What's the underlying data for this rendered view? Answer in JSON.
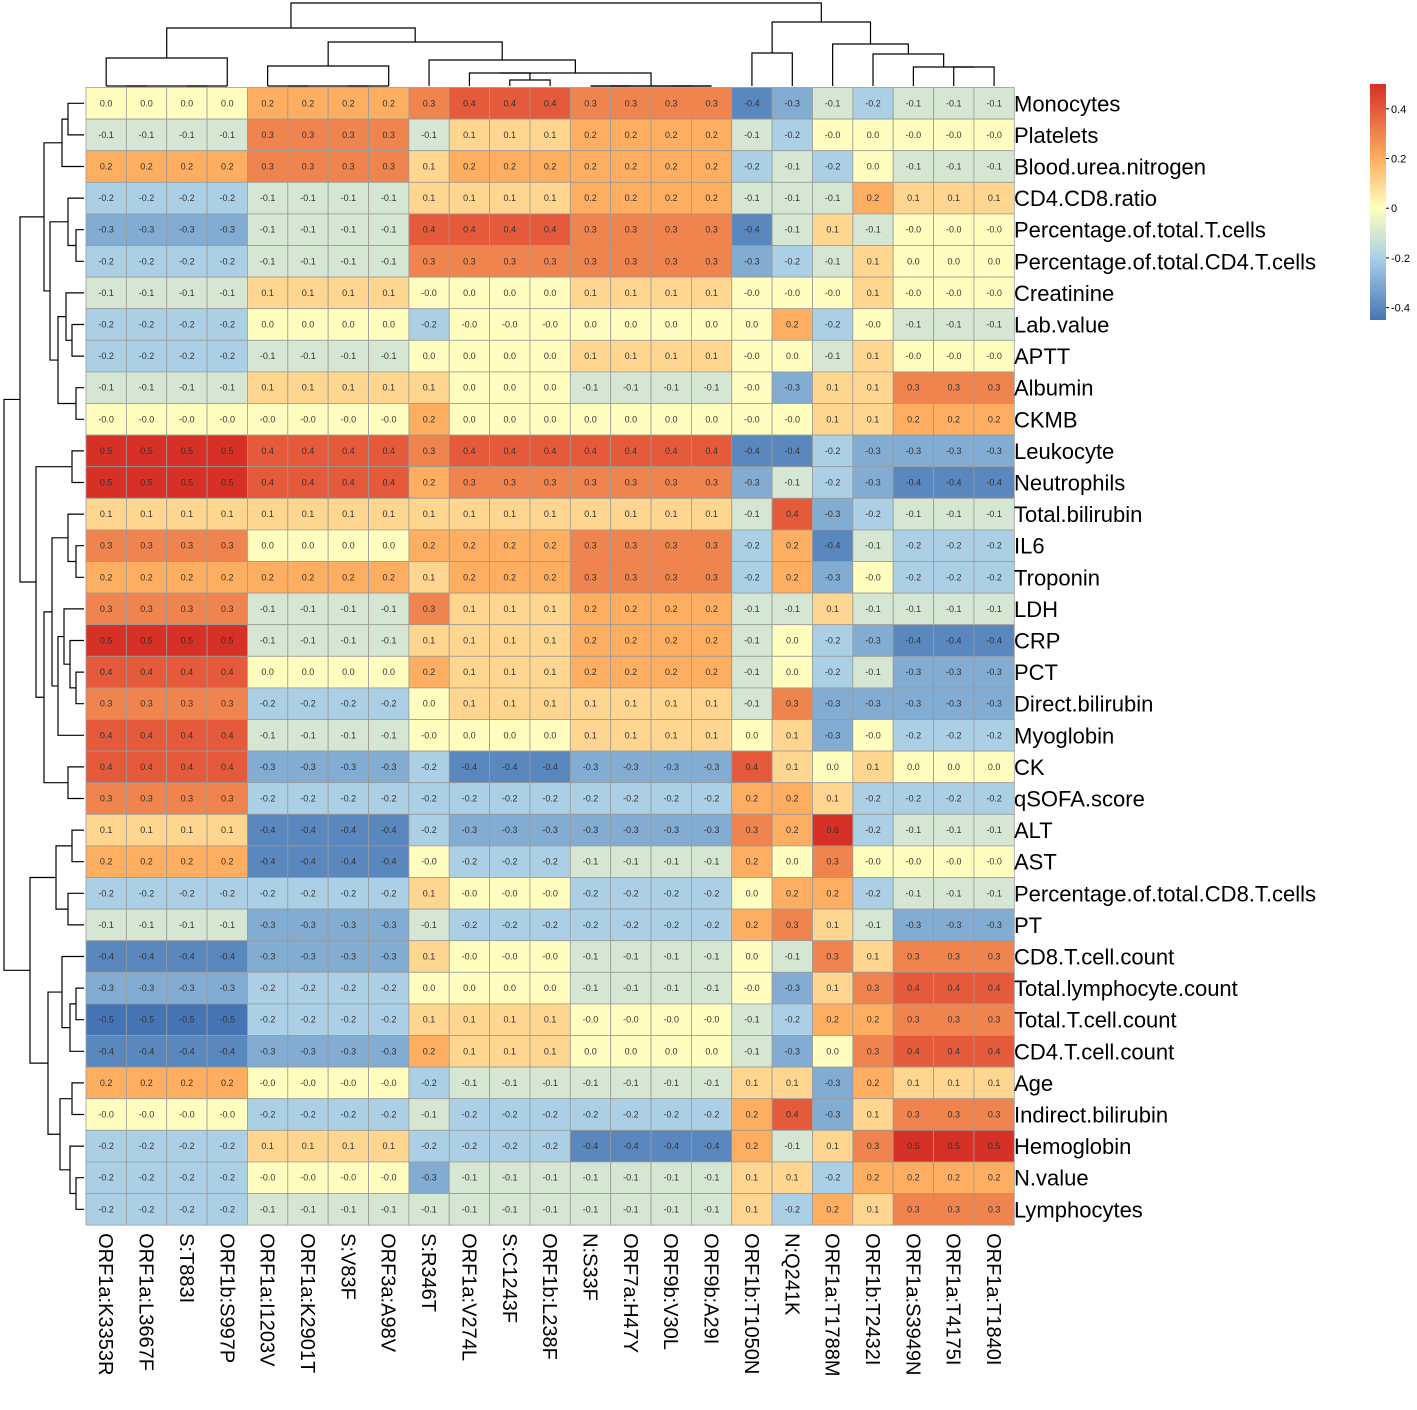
{
  "chart_data": {
    "type": "heatmap",
    "title": "",
    "columns": [
      "ORF1a:K3353R",
      "ORF1a:L3667F",
      "S:T883I",
      "ORF1b:S997P",
      "ORF1a:I1203V",
      "ORF1a:K2901T",
      "S:V83F",
      "ORF3a:A98V",
      "S:R346T",
      "ORF1a:V274L",
      "S:C1243F",
      "ORF1b:L238F",
      "N:S33F",
      "ORF7a:H47Y",
      "ORF9b:V30L",
      "ORF9b:A29I",
      "ORF1b:T1050N",
      "N:Q241K",
      "ORF1a:T1788M",
      "ORF1b:T2432I",
      "ORF1a:S3949N",
      "ORF1a:T4175I",
      "ORF1a:T1840I"
    ],
    "rows": [
      "Monocytes",
      "Platelets",
      "Blood.urea.nitrogen",
      "CD4.CD8.ratio",
      "Percentage.of.total.T.cells",
      "Percentage.of.total.CD4.T.cells",
      "Creatinine",
      "Lab.value",
      "APTT",
      "Albumin",
      "CKMB",
      "Leukocyte",
      "Neutrophils",
      "Total.bilirubin",
      "IL6",
      "Troponin",
      "LDH",
      "CRP",
      "PCT",
      "Direct.bilirubin",
      "Myoglobin",
      "CK",
      "qSOFA.score",
      "ALT",
      "AST",
      "Percentage.of.total.CD8.T.cells",
      "PT",
      "CD8.T.cell.count",
      "Total.lymphocyte.count",
      "Total.T.cell.count",
      "CD4.T.cell.count",
      "Age",
      "Indirect.bilirubin",
      "Hemoglobin",
      "N.value",
      "Lymphocytes"
    ],
    "values": [
      [
        "0.0",
        "0.0",
        "0.0",
        "0.0",
        "0.2",
        "0.2",
        "0.2",
        "0.2",
        "0.3",
        "0.4",
        "0.4",
        "0.4",
        "0.3",
        "0.3",
        "0.3",
        "0.3",
        "-0.4",
        "-0.3",
        "-0.1",
        "-0.2",
        "-0.1",
        "-0.1",
        "-0.1"
      ],
      [
        "-0.1",
        "-0.1",
        "-0.1",
        "-0.1",
        "0.3",
        "0.3",
        "0.3",
        "0.3",
        "-0.1",
        "0.1",
        "0.1",
        "0.1",
        "0.2",
        "0.2",
        "0.2",
        "0.2",
        "-0.1",
        "-0.2",
        "-0.0",
        "0.0",
        "-0.0",
        "-0.0",
        "-0.0"
      ],
      [
        "0.2",
        "0.2",
        "0.2",
        "0.2",
        "0.3",
        "0.3",
        "0.3",
        "0.3",
        "0.1",
        "0.2",
        "0.2",
        "0.2",
        "0.2",
        "0.2",
        "0.2",
        "0.2",
        "-0.2",
        "-0.1",
        "-0.2",
        "0.0",
        "-0.1",
        "-0.1",
        "-0.1"
      ],
      [
        "-0.2",
        "-0.2",
        "-0.2",
        "-0.2",
        "-0.1",
        "-0.1",
        "-0.1",
        "-0.1",
        "0.1",
        "0.1",
        "0.1",
        "0.1",
        "0.2",
        "0.2",
        "0.2",
        "0.2",
        "-0.1",
        "-0.1",
        "-0.1",
        "0.2",
        "0.1",
        "0.1",
        "0.1"
      ],
      [
        "-0.3",
        "-0.3",
        "-0.3",
        "-0.3",
        "-0.1",
        "-0.1",
        "-0.1",
        "-0.1",
        "0.4",
        "0.4",
        "0.4",
        "0.4",
        "0.3",
        "0.3",
        "0.3",
        "0.3",
        "-0.4",
        "-0.1",
        "0.1",
        "-0.1",
        "-0.0",
        "-0.0",
        "-0.0"
      ],
      [
        "-0.2",
        "-0.2",
        "-0.2",
        "-0.2",
        "-0.1",
        "-0.1",
        "-0.1",
        "-0.1",
        "0.3",
        "0.3",
        "0.3",
        "0.3",
        "0.3",
        "0.3",
        "0.3",
        "0.3",
        "-0.3",
        "-0.2",
        "-0.1",
        "0.1",
        "0.0",
        "0.0",
        "0.0"
      ],
      [
        "-0.1",
        "-0.1",
        "-0.1",
        "-0.1",
        "0.1",
        "0.1",
        "0.1",
        "0.1",
        "-0.0",
        "0.0",
        "0.0",
        "0.0",
        "0.1",
        "0.1",
        "0.1",
        "0.1",
        "-0.0",
        "-0.0",
        "-0.0",
        "0.1",
        "-0.0",
        "-0.0",
        "-0.0"
      ],
      [
        "-0.2",
        "-0.2",
        "-0.2",
        "-0.2",
        "0.0",
        "0.0",
        "0.0",
        "0.0",
        "-0.2",
        "-0.0",
        "-0.0",
        "-0.0",
        "0.0",
        "0.0",
        "0.0",
        "0.0",
        "0.0",
        "0.2",
        "-0.2",
        "-0.0",
        "-0.1",
        "-0.1",
        "-0.1"
      ],
      [
        "-0.2",
        "-0.2",
        "-0.2",
        "-0.2",
        "-0.1",
        "-0.1",
        "-0.1",
        "-0.1",
        "0.0",
        "0.0",
        "0.0",
        "0.0",
        "0.1",
        "0.1",
        "0.1",
        "0.1",
        "-0.0",
        "0.0",
        "-0.1",
        "0.1",
        "-0.0",
        "-0.0",
        "-0.0"
      ],
      [
        "-0.1",
        "-0.1",
        "-0.1",
        "-0.1",
        "0.1",
        "0.1",
        "0.1",
        "0.1",
        "0.1",
        "0.0",
        "0.0",
        "0.0",
        "-0.1",
        "-0.1",
        "-0.1",
        "-0.1",
        "-0.0",
        "-0.3",
        "0.1",
        "0.1",
        "0.3",
        "0.3",
        "0.3"
      ],
      [
        "-0.0",
        "-0.0",
        "-0.0",
        "-0.0",
        "-0.0",
        "-0.0",
        "-0.0",
        "-0.0",
        "0.2",
        "0.0",
        "0.0",
        "0.0",
        "0.0",
        "0.0",
        "0.0",
        "0.0",
        "-0.0",
        "-0.0",
        "0.1",
        "0.1",
        "0.2",
        "0.2",
        "0.2"
      ],
      [
        "0.5",
        "0.5",
        "0.5",
        "0.5",
        "0.4",
        "0.4",
        "0.4",
        "0.4",
        "0.3",
        "0.4",
        "0.4",
        "0.4",
        "0.4",
        "0.4",
        "0.4",
        "0.4",
        "-0.4",
        "-0.4",
        "-0.2",
        "-0.3",
        "-0.3",
        "-0.3",
        "-0.3"
      ],
      [
        "0.5",
        "0.5",
        "0.5",
        "0.5",
        "0.4",
        "0.4",
        "0.4",
        "0.4",
        "0.2",
        "0.3",
        "0.3",
        "0.3",
        "0.3",
        "0.3",
        "0.3",
        "0.3",
        "-0.3",
        "-0.1",
        "-0.2",
        "-0.3",
        "-0.4",
        "-0.4",
        "-0.4"
      ],
      [
        "0.1",
        "0.1",
        "0.1",
        "0.1",
        "0.1",
        "0.1",
        "0.1",
        "0.1",
        "0.1",
        "0.1",
        "0.1",
        "0.1",
        "0.1",
        "0.1",
        "0.1",
        "0.1",
        "-0.1",
        "0.4",
        "-0.3",
        "-0.2",
        "-0.1",
        "-0.1",
        "-0.1"
      ],
      [
        "0.3",
        "0.3",
        "0.3",
        "0.3",
        "0.0",
        "0.0",
        "0.0",
        "0.0",
        "0.2",
        "0.2",
        "0.2",
        "0.2",
        "0.3",
        "0.3",
        "0.3",
        "0.3",
        "-0.2",
        "0.2",
        "-0.4",
        "-0.1",
        "-0.2",
        "-0.2",
        "-0.2"
      ],
      [
        "0.2",
        "0.2",
        "0.2",
        "0.2",
        "0.2",
        "0.2",
        "0.2",
        "0.2",
        "0.1",
        "0.2",
        "0.2",
        "0.2",
        "0.3",
        "0.3",
        "0.3",
        "0.3",
        "-0.2",
        "0.2",
        "-0.3",
        "-0.0",
        "-0.2",
        "-0.2",
        "-0.2"
      ],
      [
        "0.3",
        "0.3",
        "0.3",
        "0.3",
        "-0.1",
        "-0.1",
        "-0.1",
        "-0.1",
        "0.3",
        "0.1",
        "0.1",
        "0.1",
        "0.2",
        "0.2",
        "0.2",
        "0.2",
        "-0.1",
        "-0.1",
        "0.1",
        "-0.1",
        "-0.1",
        "-0.1",
        "-0.1"
      ],
      [
        "0.5",
        "0.5",
        "0.5",
        "0.5",
        "-0.1",
        "-0.1",
        "-0.1",
        "-0.1",
        "0.1",
        "0.1",
        "0.1",
        "0.1",
        "0.2",
        "0.2",
        "0.2",
        "0.2",
        "-0.1",
        "0.0",
        "-0.2",
        "-0.3",
        "-0.4",
        "-0.4",
        "-0.4"
      ],
      [
        "0.4",
        "0.4",
        "0.4",
        "0.4",
        "0.0",
        "0.0",
        "0.0",
        "0.0",
        "0.2",
        "0.1",
        "0.1",
        "0.1",
        "0.2",
        "0.2",
        "0.2",
        "0.2",
        "-0.1",
        "0.0",
        "-0.2",
        "-0.1",
        "-0.3",
        "-0.3",
        "-0.3"
      ],
      [
        "0.3",
        "0.3",
        "0.3",
        "0.3",
        "-0.2",
        "-0.2",
        "-0.2",
        "-0.2",
        "0.0",
        "0.1",
        "0.1",
        "0.1",
        "0.1",
        "0.1",
        "0.1",
        "0.1",
        "-0.1",
        "0.3",
        "-0.3",
        "-0.3",
        "-0.3",
        "-0.3",
        "-0.3"
      ],
      [
        "0.4",
        "0.4",
        "0.4",
        "0.4",
        "-0.1",
        "-0.1",
        "-0.1",
        "-0.1",
        "-0.0",
        "0.0",
        "0.0",
        "0.0",
        "0.1",
        "0.1",
        "0.1",
        "0.1",
        "0.0",
        "0.1",
        "-0.3",
        "-0.0",
        "-0.2",
        "-0.2",
        "-0.2"
      ],
      [
        "0.4",
        "0.4",
        "0.4",
        "0.4",
        "-0.3",
        "-0.3",
        "-0.3",
        "-0.3",
        "-0.2",
        "-0.4",
        "-0.4",
        "-0.4",
        "-0.3",
        "-0.3",
        "-0.3",
        "-0.3",
        "0.4",
        "0.1",
        "0.0",
        "0.1",
        "0.0",
        "0.0",
        "0.0"
      ],
      [
        "0.3",
        "0.3",
        "0.3",
        "0.3",
        "-0.2",
        "-0.2",
        "-0.2",
        "-0.2",
        "-0.2",
        "-0.2",
        "-0.2",
        "-0.2",
        "-0.2",
        "-0.2",
        "-0.2",
        "-0.2",
        "0.2",
        "0.2",
        "0.1",
        "-0.2",
        "-0.2",
        "-0.2",
        "-0.2"
      ],
      [
        "0.1",
        "0.1",
        "0.1",
        "0.1",
        "-0.4",
        "-0.4",
        "-0.4",
        "-0.4",
        "-0.2",
        "-0.3",
        "-0.3",
        "-0.3",
        "-0.3",
        "-0.3",
        "-0.3",
        "-0.3",
        "0.3",
        "0.2",
        "0.6",
        "-0.2",
        "-0.1",
        "-0.1",
        "-0.1"
      ],
      [
        "0.2",
        "0.2",
        "0.2",
        "0.2",
        "-0.4",
        "-0.4",
        "-0.4",
        "-0.4",
        "-0.0",
        "-0.2",
        "-0.2",
        "-0.2",
        "-0.1",
        "-0.1",
        "-0.1",
        "-0.1",
        "0.2",
        "0.0",
        "0.3",
        "-0.0",
        "-0.0",
        "-0.0",
        "-0.0"
      ],
      [
        "-0.2",
        "-0.2",
        "-0.2",
        "-0.2",
        "-0.2",
        "-0.2",
        "-0.2",
        "-0.2",
        "0.1",
        "-0.0",
        "-0.0",
        "-0.0",
        "-0.2",
        "-0.2",
        "-0.2",
        "-0.2",
        "0.0",
        "0.2",
        "0.2",
        "-0.2",
        "-0.1",
        "-0.1",
        "-0.1"
      ],
      [
        "-0.1",
        "-0.1",
        "-0.1",
        "-0.1",
        "-0.3",
        "-0.3",
        "-0.3",
        "-0.3",
        "-0.1",
        "-0.2",
        "-0.2",
        "-0.2",
        "-0.2",
        "-0.2",
        "-0.2",
        "-0.2",
        "0.2",
        "0.3",
        "0.1",
        "-0.1",
        "-0.3",
        "-0.3",
        "-0.3"
      ],
      [
        "-0.4",
        "-0.4",
        "-0.4",
        "-0.4",
        "-0.3",
        "-0.3",
        "-0.3",
        "-0.3",
        "0.1",
        "-0.0",
        "-0.0",
        "-0.0",
        "-0.1",
        "-0.1",
        "-0.1",
        "-0.1",
        "0.0",
        "-0.1",
        "0.3",
        "0.1",
        "0.3",
        "0.3",
        "0.3"
      ],
      [
        "-0.3",
        "-0.3",
        "-0.3",
        "-0.3",
        "-0.2",
        "-0.2",
        "-0.2",
        "-0.2",
        "0.0",
        "0.0",
        "0.0",
        "0.0",
        "-0.1",
        "-0.1",
        "-0.1",
        "-0.1",
        "-0.0",
        "-0.3",
        "0.1",
        "0.3",
        "0.4",
        "0.4",
        "0.4"
      ],
      [
        "-0.5",
        "-0.5",
        "-0.5",
        "-0.5",
        "-0.2",
        "-0.2",
        "-0.2",
        "-0.2",
        "0.1",
        "0.1",
        "0.1",
        "0.1",
        "-0.0",
        "-0.0",
        "-0.0",
        "-0.0",
        "-0.1",
        "-0.2",
        "0.2",
        "0.2",
        "0.3",
        "0.3",
        "0.3"
      ],
      [
        "-0.4",
        "-0.4",
        "-0.4",
        "-0.4",
        "-0.3",
        "-0.3",
        "-0.3",
        "-0.3",
        "0.2",
        "0.1",
        "0.1",
        "0.1",
        "0.0",
        "0.0",
        "0.0",
        "0.0",
        "-0.1",
        "-0.3",
        "0.0",
        "0.3",
        "0.4",
        "0.4",
        "0.4"
      ],
      [
        "0.2",
        "0.2",
        "0.2",
        "0.2",
        "-0.0",
        "-0.0",
        "-0.0",
        "-0.0",
        "-0.2",
        "-0.1",
        "-0.1",
        "-0.1",
        "-0.1",
        "-0.1",
        "-0.1",
        "-0.1",
        "0.1",
        "0.1",
        "-0.3",
        "0.2",
        "0.1",
        "0.1",
        "0.1"
      ],
      [
        "-0.0",
        "-0.0",
        "-0.0",
        "-0.0",
        "-0.2",
        "-0.2",
        "-0.2",
        "-0.2",
        "-0.1",
        "-0.2",
        "-0.2",
        "-0.2",
        "-0.2",
        "-0.2",
        "-0.2",
        "-0.2",
        "0.2",
        "0.4",
        "-0.3",
        "0.1",
        "0.3",
        "0.3",
        "0.3"
      ],
      [
        "-0.2",
        "-0.2",
        "-0.2",
        "-0.2",
        "0.1",
        "0.1",
        "0.1",
        "0.1",
        "-0.2",
        "-0.2",
        "-0.2",
        "-0.2",
        "-0.4",
        "-0.4",
        "-0.4",
        "-0.4",
        "0.2",
        "-0.1",
        "0.1",
        "0.3",
        "0.5",
        "0.5",
        "0.5"
      ],
      [
        "-0.2",
        "-0.2",
        "-0.2",
        "-0.2",
        "-0.0",
        "-0.0",
        "-0.0",
        "-0.0",
        "-0.3",
        "-0.1",
        "-0.1",
        "-0.1",
        "-0.1",
        "-0.1",
        "-0.1",
        "-0.1",
        "0.1",
        "0.1",
        "-0.2",
        "0.2",
        "0.2",
        "0.2",
        "0.2"
      ],
      [
        "-0.2",
        "-0.2",
        "-0.2",
        "-0.2",
        "-0.1",
        "-0.1",
        "-0.1",
        "-0.1",
        "-0.1",
        "-0.1",
        "-0.1",
        "-0.1",
        "-0.1",
        "-0.1",
        "-0.1",
        "-0.1",
        "0.1",
        "-0.2",
        "0.2",
        "0.1",
        "0.3",
        "0.3",
        "0.3"
      ]
    ],
    "color_scale": {
      "range": [
        -0.45,
        0.5
      ],
      "stops": [
        {
          "value": -0.45,
          "color": "#4575b4"
        },
        {
          "value": -0.2,
          "color": "#abd0e5"
        },
        {
          "value": 0.0,
          "color": "#fffebf"
        },
        {
          "value": 0.2,
          "color": "#fdae61"
        },
        {
          "value": 0.5,
          "color": "#d73027"
        }
      ]
    },
    "legend": {
      "position": "top-right",
      "ticks": [
        "0.4",
        "0.2",
        "0",
        "-0.2",
        "-0.4"
      ]
    }
  }
}
